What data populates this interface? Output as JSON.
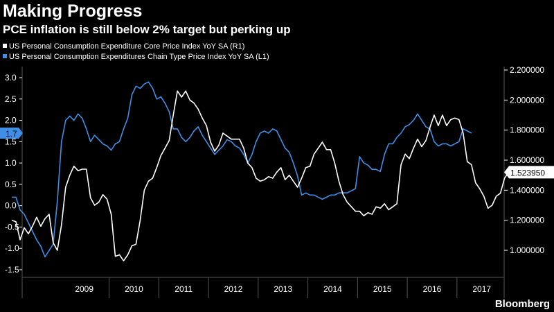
{
  "header": {
    "title": "Making Progress",
    "subtitle": "PCE inflation is still below 2% target but perking up"
  },
  "footer": {
    "brand": "Bloomberg"
  },
  "chart_data": {
    "type": "line",
    "colors": {
      "core": "#ffffff",
      "headline": "#3f8fe6",
      "background": "#000000",
      "grid": "#555555"
    },
    "x_labels": [
      "2009",
      "2010",
      "2011",
      "2012",
      "2013",
      "2014",
      "2015",
      "2016",
      "2017"
    ],
    "left_axis": {
      "ylim": [
        -1.5,
        3.0
      ],
      "ticks": [
        "3.0",
        "2.5",
        "2.0",
        "1.5",
        "1.0",
        "0.5",
        "0.0",
        "-0.5",
        "-1.0",
        "-1.5"
      ]
    },
    "right_axis": {
      "ylim": [
        0.9,
        2.2
      ],
      "ticks": [
        "2.200000",
        "2.000000",
        "1.800000",
        "1.600000",
        "1.400000",
        "1.200000",
        "1.000000"
      ]
    },
    "last_value_left": "1.7",
    "last_value_right": "1.523950",
    "series": [
      {
        "name": "US Personal Consumption Expenditure Core Price Index YoY SA  (R1)",
        "axis": "right",
        "start_year": 2008,
        "values": [
          1.2,
          1.19,
          1.07,
          1.15,
          1.11,
          1.16,
          1.22,
          1.16,
          1.21,
          1.24,
          1.05,
          1.0,
          1.17,
          1.42,
          1.5,
          1.56,
          1.53,
          1.54,
          1.54,
          1.35,
          1.3,
          1.32,
          1.37,
          1.34,
          1.24,
          0.96,
          0.97,
          0.93,
          0.97,
          1.03,
          1.04,
          1.2,
          1.4,
          1.46,
          1.48,
          1.55,
          1.63,
          1.68,
          1.73,
          1.9,
          2.06,
          2.02,
          2.06,
          2.0,
          1.98,
          1.94,
          1.88,
          1.83,
          1.72,
          1.66,
          1.7,
          1.78,
          1.76,
          1.74,
          1.74,
          1.74,
          1.68,
          1.58,
          1.55,
          1.48,
          1.46,
          1.47,
          1.49,
          1.48,
          1.52,
          1.55,
          1.47,
          1.5,
          1.46,
          1.42,
          1.48,
          1.55,
          1.56,
          1.64,
          1.68,
          1.72,
          1.67,
          1.67,
          1.58,
          1.46,
          1.37,
          1.32,
          1.29,
          1.26,
          1.26,
          1.23,
          1.25,
          1.24,
          1.29,
          1.28,
          1.31,
          1.27,
          1.29,
          1.31,
          1.57,
          1.64,
          1.61,
          1.68,
          1.74,
          1.69,
          1.73,
          1.82,
          1.9,
          1.83,
          1.9,
          1.83,
          1.87,
          1.88,
          1.87,
          1.78,
          1.59,
          1.57,
          1.45,
          1.41,
          1.36,
          1.28,
          1.3,
          1.36,
          1.38,
          1.48,
          1.52
        ]
      },
      {
        "name": "US Personal Consumption Expenditures Chain Type Price Index YoY SA  (L1)",
        "axis": "left",
        "start_year": 2008,
        "values": [
          0.2,
          0.2,
          -0.1,
          -0.2,
          -0.4,
          -0.6,
          -0.8,
          -0.95,
          -1.2,
          -1.05,
          -0.9,
          0.1,
          1.5,
          2.0,
          2.1,
          2.0,
          2.15,
          2.05,
          1.8,
          1.5,
          1.65,
          1.55,
          1.45,
          1.4,
          1.3,
          1.45,
          1.5,
          1.8,
          2.05,
          2.6,
          2.8,
          2.75,
          2.85,
          2.9,
          2.75,
          2.5,
          2.55,
          2.4,
          2.2,
          1.8,
          1.8,
          1.6,
          1.5,
          1.6,
          1.75,
          1.85,
          1.65,
          1.5,
          1.35,
          1.2,
          1.3,
          1.4,
          1.55,
          1.5,
          1.4,
          1.35,
          1.2,
          1.0,
          1.2,
          1.5,
          1.7,
          1.75,
          1.7,
          1.8,
          1.75,
          1.55,
          1.35,
          1.25,
          1.0,
          0.7,
          0.25,
          0.3,
          0.25,
          0.25,
          0.2,
          0.15,
          0.2,
          0.25,
          0.25,
          0.3,
          0.3,
          0.3,
          0.35,
          0.4,
          1.15,
          1.0,
          0.95,
          0.85,
          0.85,
          0.8,
          1.2,
          1.45,
          1.45,
          1.6,
          1.7,
          1.85,
          1.9,
          2.0,
          2.15,
          2.0,
          1.85,
          1.8,
          1.5,
          1.4,
          1.45,
          1.45,
          1.4,
          1.45,
          1.5,
          1.8,
          1.75,
          1.7
        ]
      }
    ]
  }
}
